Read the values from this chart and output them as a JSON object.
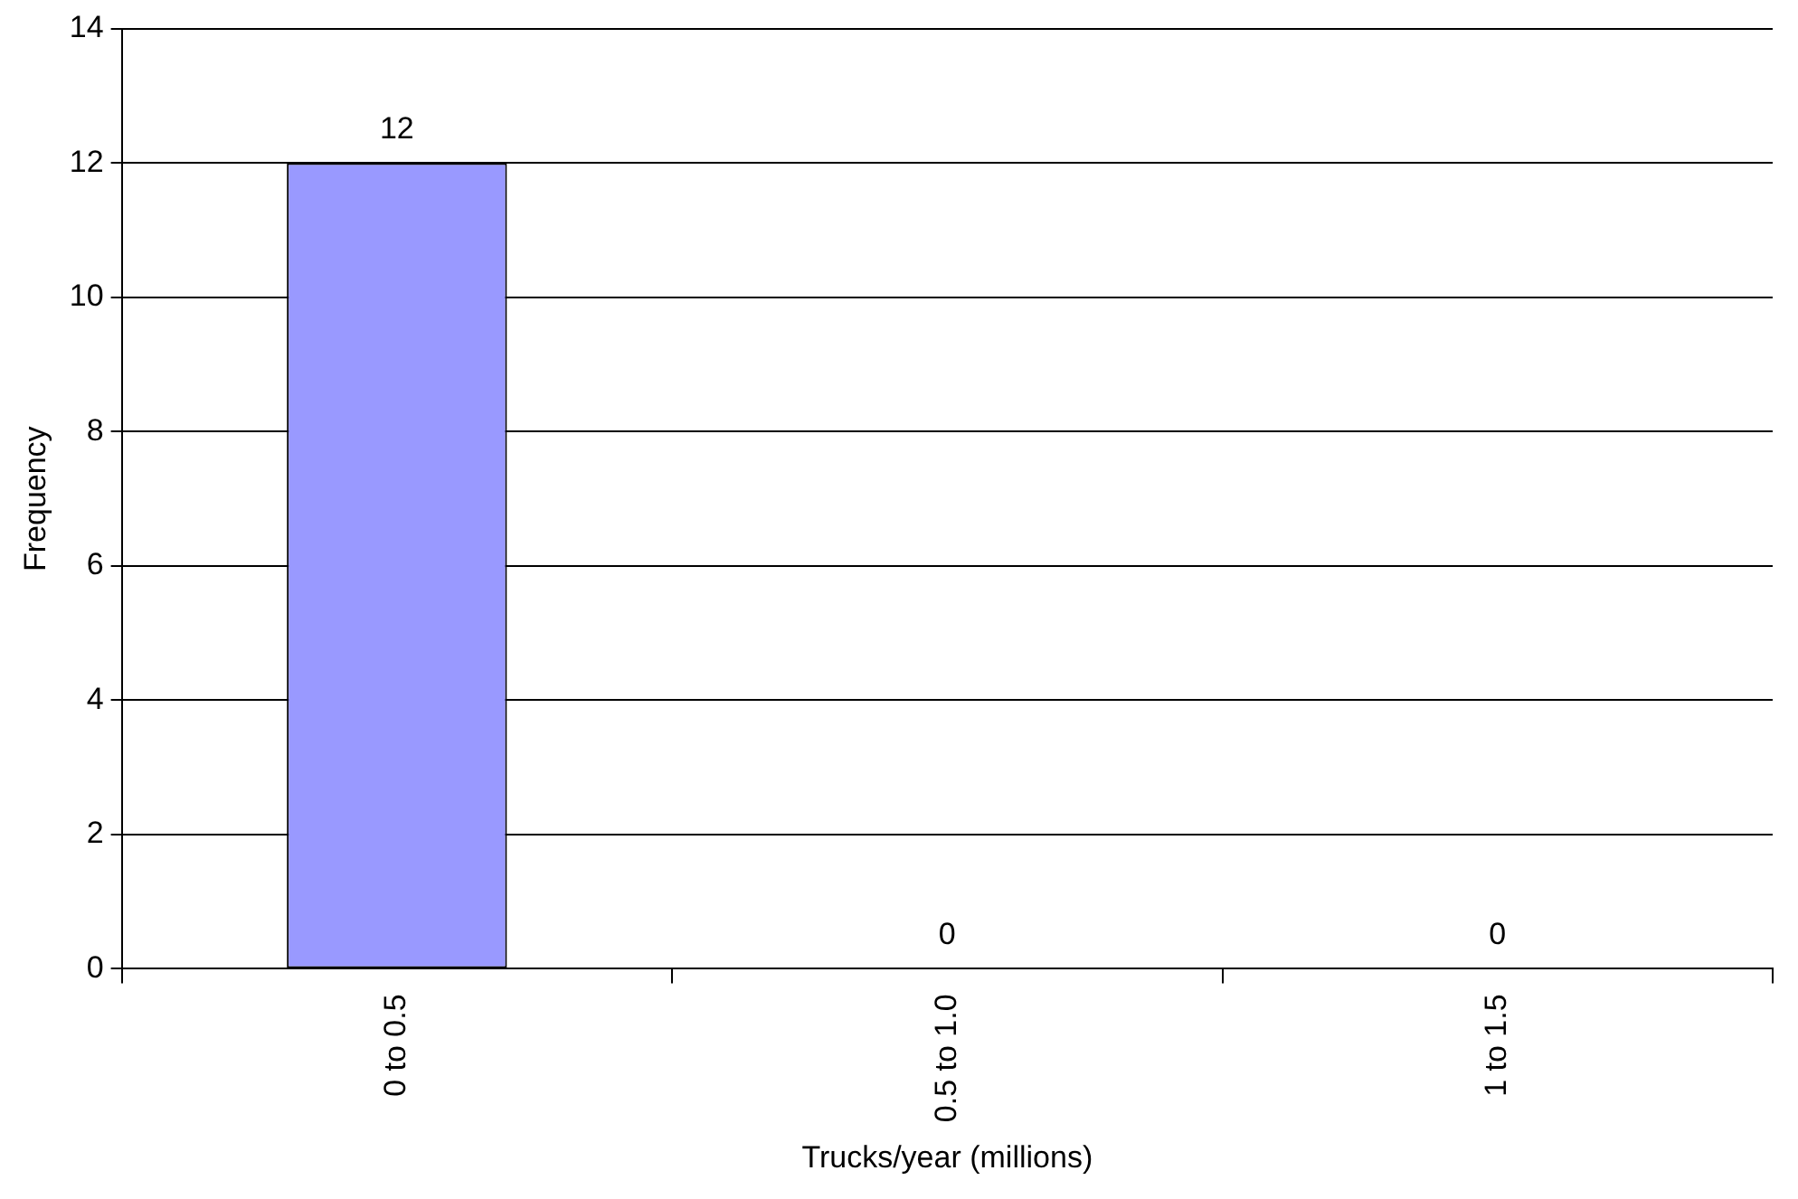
{
  "chart_data": {
    "type": "bar",
    "xlabel": "Trucks/year (millions)",
    "ylabel": "Frequency",
    "categories": [
      "0 to 0.5",
      "0.5 to 1.0",
      "1 to 1.5"
    ],
    "values": [
      12,
      0,
      0
    ],
    "color": "#9999ff",
    "ylim": [
      0,
      14
    ],
    "yticks": [
      0,
      2,
      4,
      6,
      8,
      10,
      12,
      14
    ],
    "grid": "y",
    "data_labels": true,
    "legend": false
  }
}
